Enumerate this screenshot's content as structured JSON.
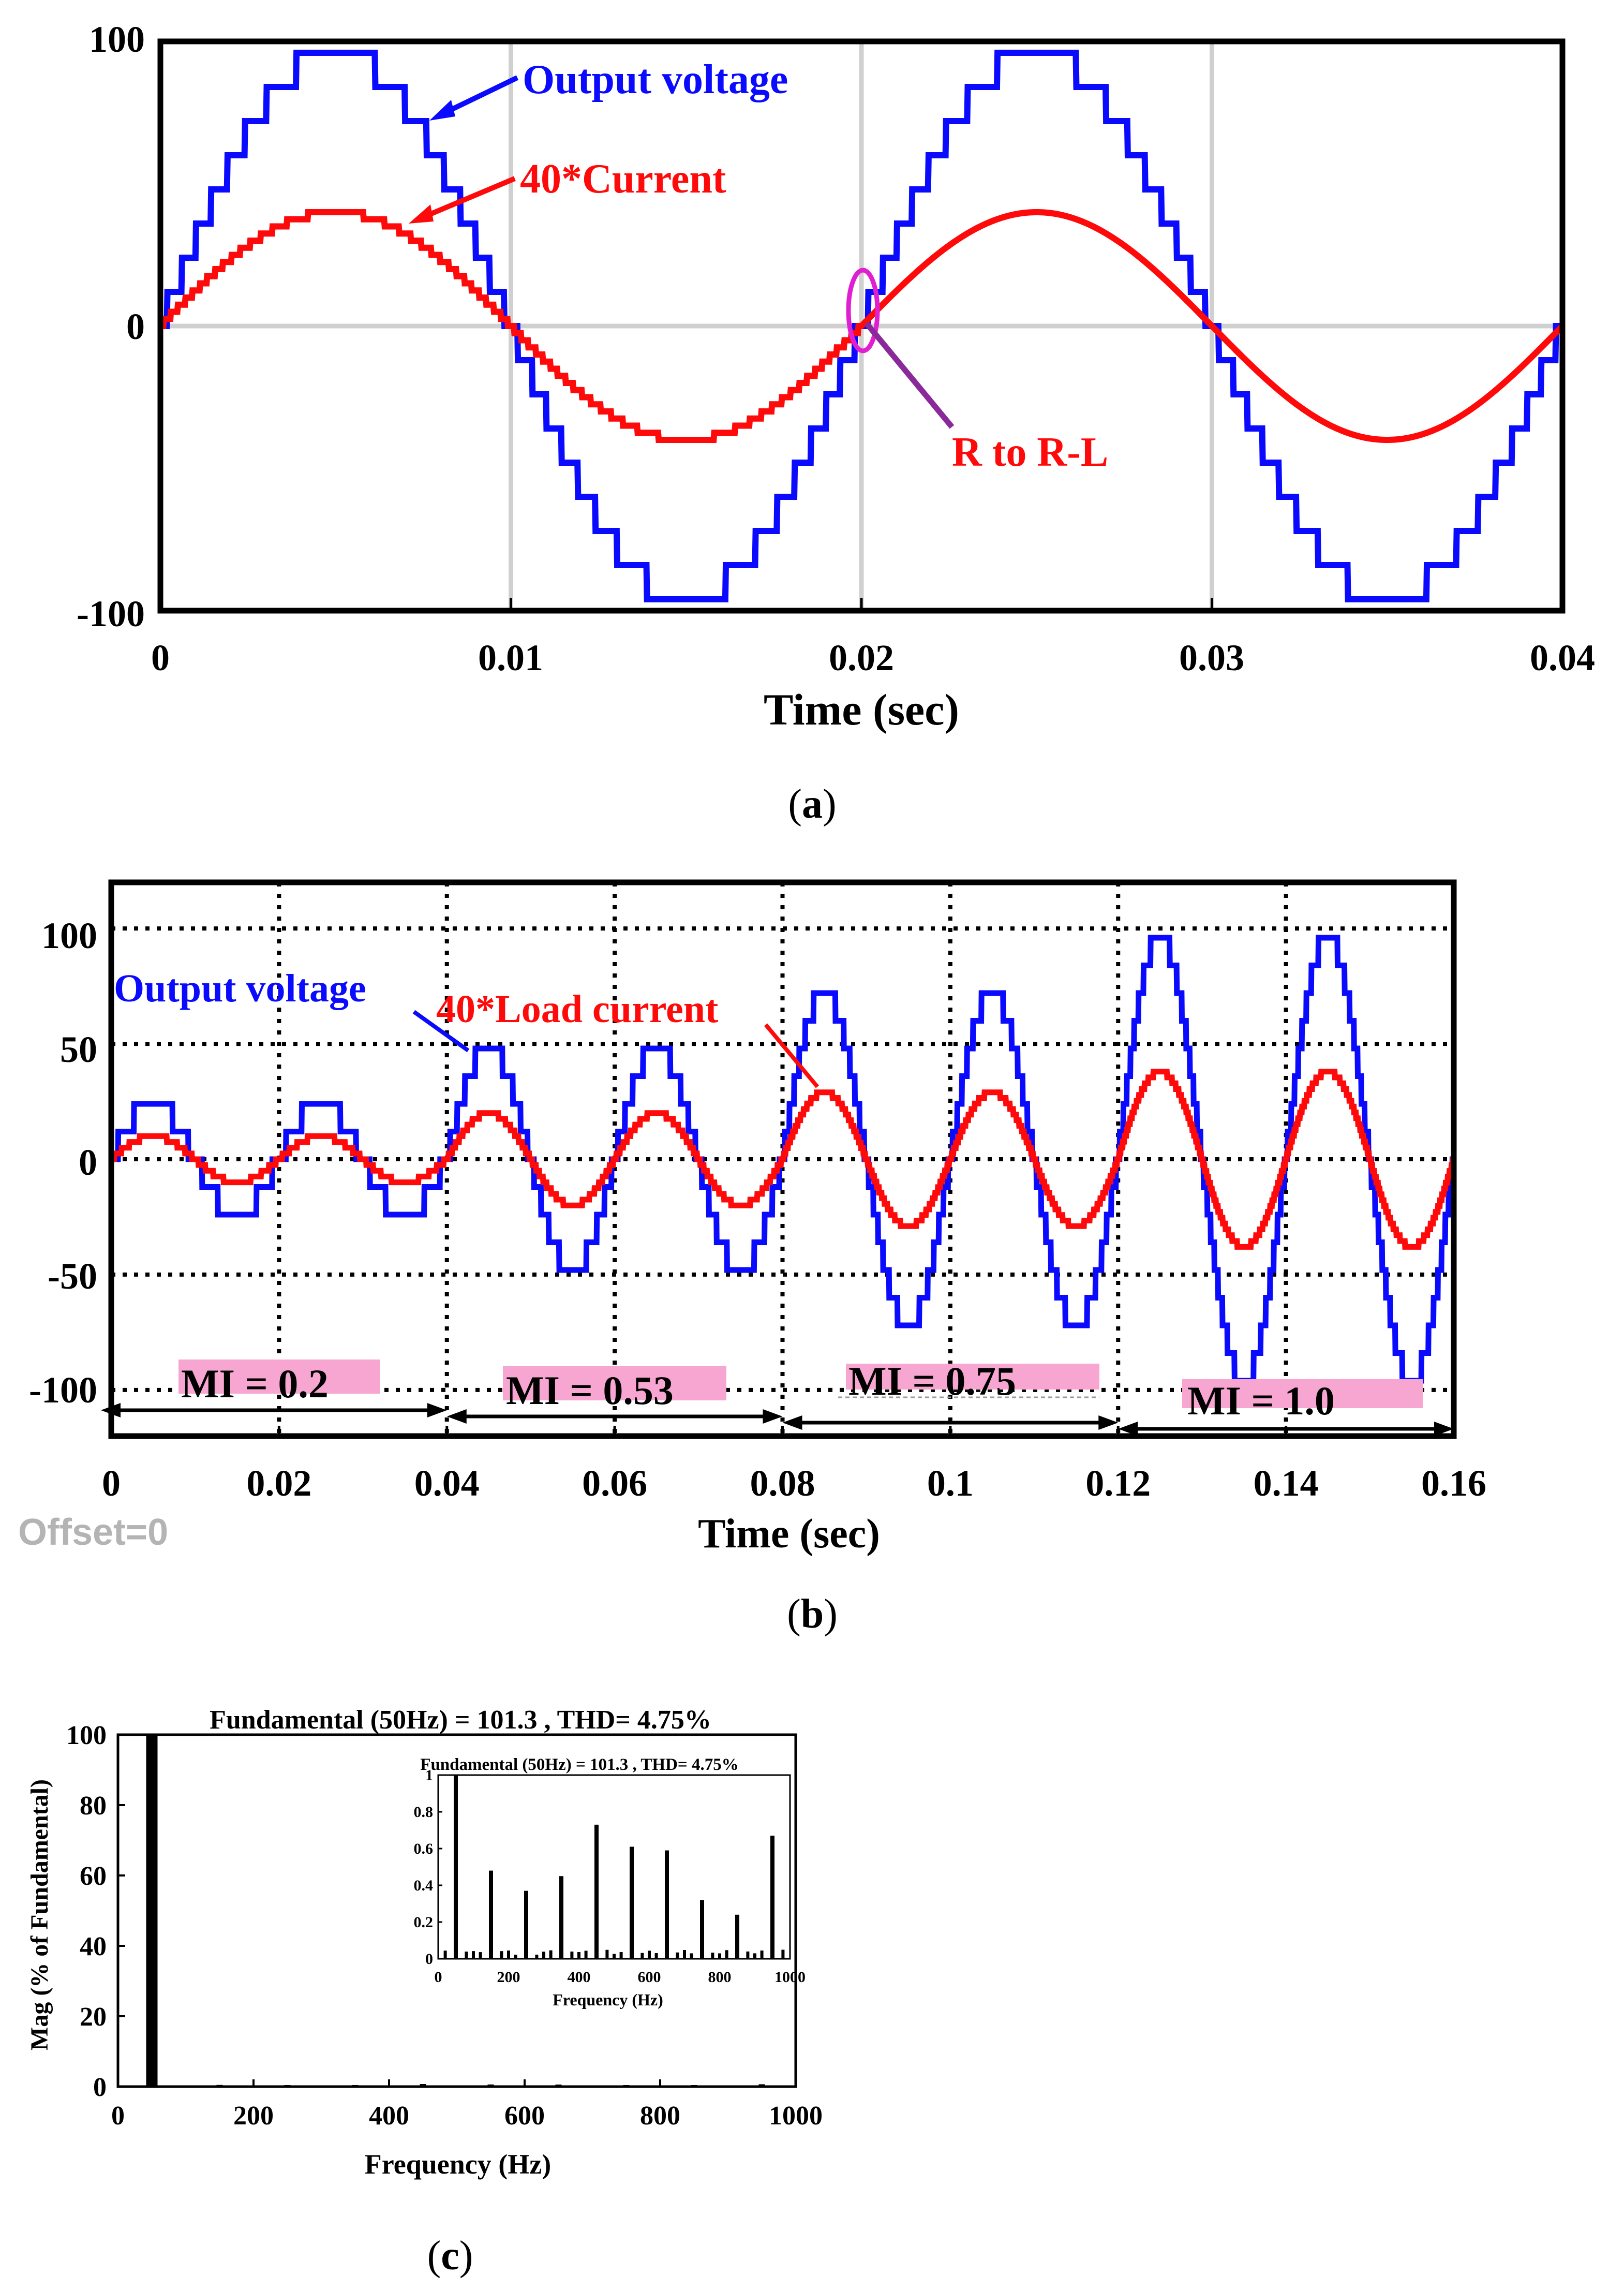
{
  "colors": {
    "voltage": "#0a0aff",
    "current": "#ff0a0a",
    "grid": "#d0d0d0",
    "mi_box": "#f7a6d2",
    "ellipse": "#e020d0",
    "arrow_purple": "#8a2a9a",
    "offset_gray": "#b4b4b4"
  },
  "chart_data": [
    {
      "id": "a",
      "type": "line",
      "caption": "(a)",
      "xlabel": "Time (sec)",
      "ylabel": "",
      "xlim": [
        0,
        0.04
      ],
      "ylim": [
        -100,
        100
      ],
      "xticks": [
        0,
        0.01,
        0.02,
        0.03,
        0.04
      ],
      "xtick_labels": [
        "0",
        "0.01",
        "0.02",
        "0.03",
        "0.04"
      ],
      "yticks": [
        -100,
        0,
        100
      ],
      "ytick_labels": [
        "-100",
        "0",
        "100"
      ],
      "grid": "solid",
      "series": [
        {
          "name": "Output voltage",
          "kind": "staircase",
          "amplitude": 96,
          "frequency_hz": 50,
          "phase": 0,
          "levels": 8,
          "color_key": "voltage"
        },
        {
          "name": "40*Current",
          "kind": "staircase",
          "amplitude": 40,
          "frequency_hz": 50,
          "phase": 0,
          "levels": 16,
          "smooth_after": 0.02,
          "color_key": "current"
        }
      ],
      "annotations": [
        {
          "text": "Output voltage",
          "points_to": [
            0.0075,
            72
          ],
          "color_key": "voltage"
        },
        {
          "text": "40*Current",
          "points_to": [
            0.007,
            35
          ],
          "color_key": "current"
        },
        {
          "text": "R to R-L",
          "points_to": [
            0.0201,
            -2
          ],
          "color_key": "current"
        }
      ]
    },
    {
      "id": "b",
      "type": "line",
      "caption": "(b)",
      "xlabel": "Time (sec)",
      "ylabel": "",
      "xlim": [
        0,
        0.16
      ],
      "ylim": [
        -120,
        120
      ],
      "xticks": [
        0,
        0.02,
        0.04,
        0.06,
        0.08,
        0.1,
        0.12,
        0.14,
        0.16
      ],
      "xtick_labels": [
        "0",
        "0.02",
        "0.04",
        "0.06",
        "0.08",
        "0.1",
        "0.12",
        "0.14",
        "0.16"
      ],
      "yticks": [
        -100,
        -50,
        0,
        50,
        100
      ],
      "ytick_labels": [
        "-100",
        "-50",
        "0",
        "50",
        "100"
      ],
      "grid": "dotted",
      "segments": [
        {
          "label": "MI = 0.2",
          "t0": 0,
          "t1": 0.04,
          "voltage_peak": 24,
          "current_peak": 10
        },
        {
          "label": "MI = 0.53",
          "t0": 0.04,
          "t1": 0.08,
          "voltage_peak": 48,
          "current_peak": 20
        },
        {
          "label": "MI = 0.75",
          "t0": 0.08,
          "t1": 0.12,
          "voltage_peak": 72,
          "current_peak": 29
        },
        {
          "label": "MI = 1.0",
          "t0": 0.12,
          "t1": 0.16,
          "voltage_peak": 96,
          "current_peak": 38
        }
      ],
      "series": [
        {
          "name": "Output voltage",
          "color_key": "voltage"
        },
        {
          "name": "40*Load current",
          "color_key": "current"
        }
      ],
      "corner_note": "Offset=0"
    },
    {
      "id": "c",
      "type": "bar",
      "caption": "(c)",
      "title": "Fundamental (50Hz) = 101.3 , THD= 4.75%",
      "xlabel": "Frequency (Hz)",
      "ylabel": "Mag (% of Fundamental)",
      "xlim": [
        0,
        1000
      ],
      "ylim": [
        0,
        100
      ],
      "xticks": [
        0,
        200,
        400,
        600,
        800,
        1000
      ],
      "xtick_labels": [
        "0",
        "200",
        "400",
        "600",
        "800",
        "1000"
      ],
      "yticks": [
        0,
        20,
        40,
        60,
        80,
        100
      ],
      "ytick_labels": [
        "0",
        "20",
        "40",
        "60",
        "80",
        "100"
      ],
      "bars": [
        {
          "f": 50,
          "v": 100
        },
        {
          "f": 150,
          "v": 0.48
        },
        {
          "f": 250,
          "v": 0.37
        },
        {
          "f": 350,
          "v": 0.45
        },
        {
          "f": 450,
          "v": 0.73
        },
        {
          "f": 550,
          "v": 0.61
        },
        {
          "f": 650,
          "v": 0.59
        },
        {
          "f": 750,
          "v": 0.32
        },
        {
          "f": 850,
          "v": 0.24
        },
        {
          "f": 950,
          "v": 0.67
        }
      ],
      "inset": {
        "title": "Fundamental (50Hz) = 101.3 , THD= 4.75%",
        "xlabel": "Frequency (Hz)",
        "xlim": [
          0,
          1000
        ],
        "ylim": [
          0,
          1
        ],
        "xticks": [
          0,
          200,
          400,
          600,
          800,
          1000
        ],
        "xtick_labels": [
          "0",
          "200",
          "400",
          "600",
          "800",
          "1000"
        ],
        "yticks": [
          0,
          0.2,
          0.4,
          0.6,
          0.8,
          1
        ],
        "ytick_labels": [
          "0",
          "0.2",
          "0.4",
          "0.6",
          "0.8",
          "1"
        ]
      }
    }
  ]
}
